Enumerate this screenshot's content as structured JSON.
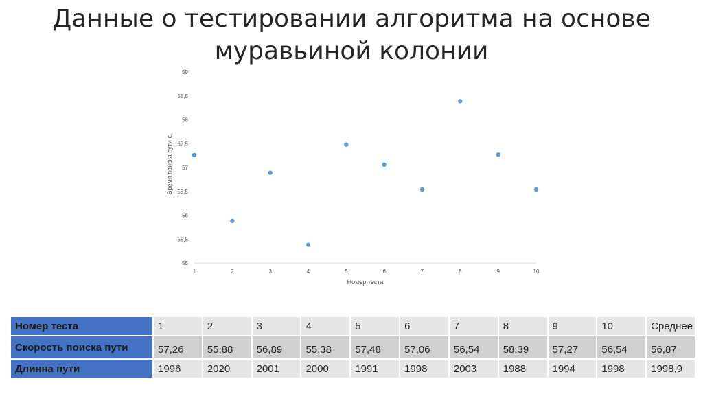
{
  "slide": {
    "title_line1": "Данные о тестировании алгоритма на основе",
    "title_line2": "муравьиной колонии"
  },
  "chart_data": {
    "type": "scatter",
    "x": [
      1,
      2,
      3,
      4,
      5,
      6,
      7,
      8,
      9,
      10
    ],
    "y": [
      57.26,
      55.88,
      56.89,
      55.38,
      57.48,
      57.06,
      56.54,
      58.39,
      57.27,
      56.54
    ],
    "xlabel": "Номер теста",
    "ylabel": "Время поиска пути с.",
    "xlim": [
      1,
      10
    ],
    "ylim": [
      55,
      59
    ],
    "x_ticks": [
      "1",
      "2",
      "3",
      "4",
      "5",
      "6",
      "7",
      "8",
      "9",
      "10"
    ],
    "y_ticks": [
      "55",
      "55,5",
      "56",
      "56,5",
      "57",
      "57,5",
      "58",
      "58,5",
      "59"
    ],
    "grid": false,
    "legend": "none",
    "marker_color": "#5b9bd5"
  },
  "table": {
    "rows": [
      {
        "header": "Номер теста",
        "cells": [
          "1",
          "2",
          "3",
          "4",
          "5",
          "6",
          "7",
          "8",
          "9",
          "10",
          "Среднее"
        ]
      },
      {
        "header": "Скорость поиска пути",
        "cells": [
          "57,26",
          "55,88",
          "56,89",
          "55,38",
          "57,48",
          "57,06",
          "56,54",
          "58,39",
          "57,27",
          "56,54",
          "56,87"
        ]
      },
      {
        "header": "Длинна пути",
        "cells": [
          "1996",
          "2020",
          "2001",
          "2000",
          "1991",
          "1998",
          "2003",
          "1988",
          "1994",
          "1998",
          "1998,9"
        ]
      }
    ]
  },
  "colors": {
    "header_cell": "#4472c4",
    "row_light": "#e6e6e6",
    "row_dark": "#d0d0d0",
    "marker": "#5b9bd5",
    "axis": "#d9d9d9"
  }
}
